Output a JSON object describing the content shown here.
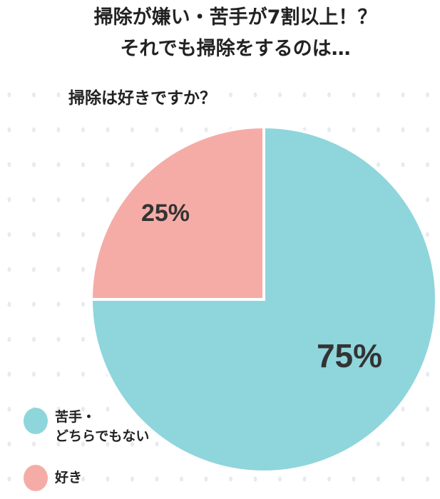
{
  "chart_data": {
    "type": "pie",
    "title": [
      "掃除が嫌い・苦手が7割以上！？",
      "それでも掃除をするのは…"
    ],
    "subtitle": "掃除は好きですか？",
    "slices": [
      {
        "label": "苦手・\nどちらでもない",
        "value": 75,
        "display": "75%",
        "color": "#8fd5dc"
      },
      {
        "label": "好き",
        "value": 25,
        "display": "25%",
        "color": "#f5aca7"
      }
    ],
    "start": "top",
    "direction": "clockwise",
    "legend_position": "bottom-left",
    "background": "dotted"
  }
}
